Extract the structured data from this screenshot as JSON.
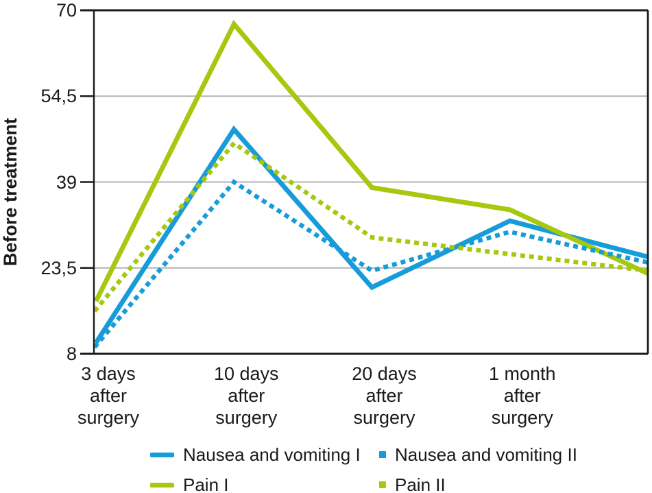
{
  "chart_data": {
    "type": "line",
    "title": "",
    "ylabel": "Before treatment",
    "xlabel": "",
    "ylim": [
      8,
      70
    ],
    "yticks": [
      {
        "value": 70,
        "label": "70"
      },
      {
        "value": 54.5,
        "label": "54,5"
      },
      {
        "value": 39,
        "label": "39"
      },
      {
        "value": 23.5,
        "label": "23,5"
      },
      {
        "value": 8,
        "label": "8"
      }
    ],
    "categories": [
      "3 days\nafter\nsurgery",
      "10 days\nafter\nsurgery",
      "20 days\nafter\nsurgery",
      "1 month\nafter\nsurgery",
      ""
    ],
    "series": [
      {
        "name": "Nausea and vomiting I",
        "style": "solid",
        "color": "#189CD9",
        "values": [
          10,
          48.5,
          20,
          32,
          25.5
        ]
      },
      {
        "name": "Nausea and vomiting II",
        "style": "dotted",
        "color": "#189CD9",
        "values": [
          9.5,
          39,
          23,
          30,
          24.5
        ]
      },
      {
        "name": "Pain I",
        "style": "solid",
        "color": "#A6C80F",
        "values": [
          17.5,
          67.5,
          38,
          34,
          22.5
        ]
      },
      {
        "name": "Pain II",
        "style": "dotted",
        "color": "#A6C80F",
        "values": [
          16,
          46,
          29,
          26,
          23
        ]
      }
    ],
    "grid": "horizontal",
    "legend_position": "bottom",
    "axis_color": "#1a1a1a",
    "gridline_color": "#b3b3b3"
  }
}
